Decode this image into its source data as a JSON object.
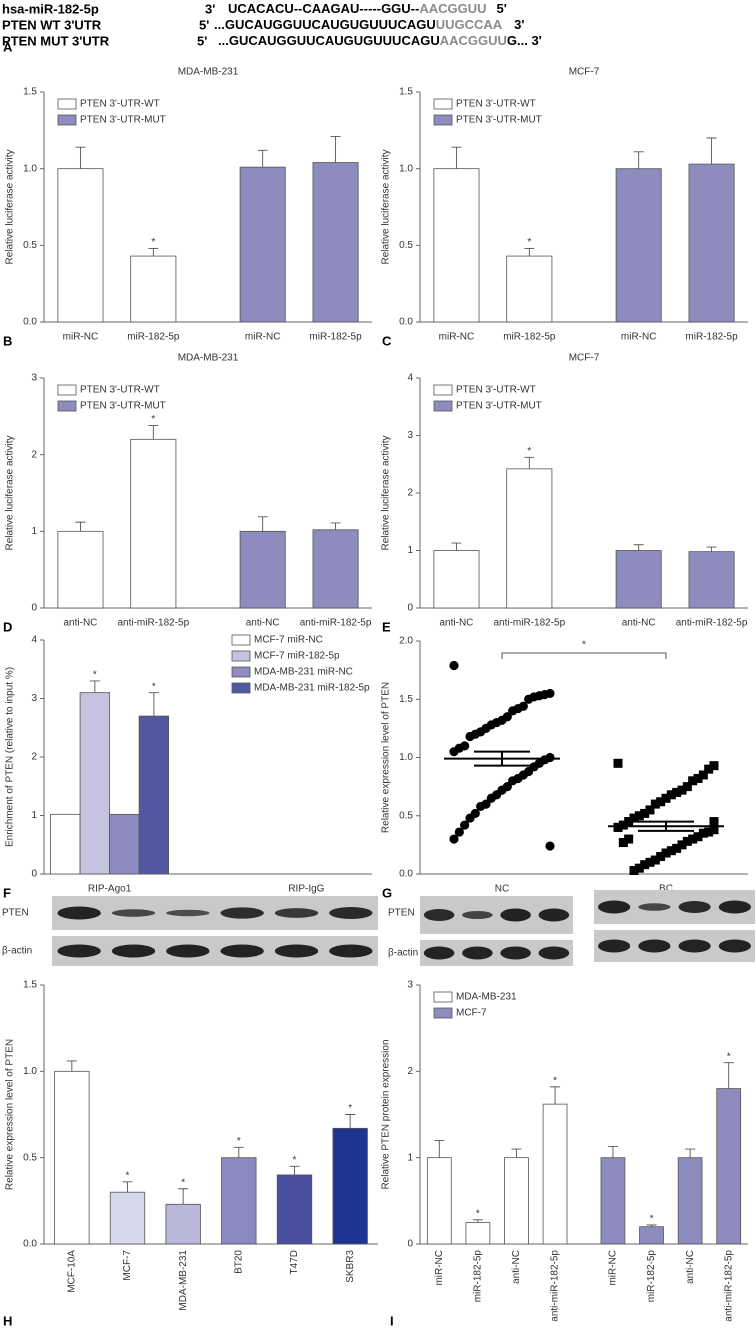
{
  "sequence_panel": {
    "panel": "A",
    "rows": [
      {
        "name": "hsa-miR-182-5p",
        "prefix": "3'",
        "sequence": "UCACACU--CAAGAU-----GGU--",
        "seed": "AACGGUU",
        "suffix": "5'"
      },
      {
        "name": "PTEN WT  3'UTR",
        "prefix": "5'",
        "sequence": "...GUCAUGGUUCAUGUGUUUCAGU",
        "seed": "UUGCCAA",
        "suffix": "3'"
      },
      {
        "name": "PTEN MUT 3'UTR",
        "prefix": "5'",
        "sequence": "...GUCAUGGUUCAUGUGUUUCAGU",
        "seed": "AACGGUU",
        "suffix": "G... 3'"
      }
    ]
  },
  "chart_data": [
    {
      "type": "bar",
      "panel": "B",
      "title": "MDA-MB-231",
      "y_label": "Relative luciferase activity",
      "categories": [
        "miR-NC",
        "miR-182-5p",
        "miR-NC",
        "miR-182-5p"
      ],
      "series": [
        {
          "name": "PTEN 3'-UTR-WT",
          "color": "#ffffff",
          "values": [
            1.0,
            0.43,
            null,
            null
          ],
          "errors": [
            0.14,
            0.05,
            null,
            null
          ],
          "annotations": [
            null,
            "*",
            null,
            null
          ]
        },
        {
          "name": "PTEN 3'-UTR-MUT",
          "color": "#8e8bbf",
          "values": [
            null,
            null,
            1.01,
            1.04
          ],
          "errors": [
            null,
            null,
            0.11,
            0.17
          ],
          "annotations": [
            null,
            null,
            null,
            null
          ]
        }
      ],
      "ylim": [
        0,
        1.5
      ],
      "yticks": [
        {
          "value": 0,
          "label": "0.0"
        },
        {
          "value": 0.5,
          "label": "0.5"
        },
        {
          "value": 1,
          "label": "1.0"
        },
        {
          "value": 1.5,
          "label": "1.5"
        }
      ],
      "legend": "upper left"
    },
    {
      "type": "bar",
      "panel": "C",
      "title": "MCF-7",
      "y_label": "Relative luciferase activity",
      "categories": [
        "miR-NC",
        "miR-182-5p",
        "miR-NC",
        "miR-182-5p"
      ],
      "series": [
        {
          "name": "PTEN 3'-UTR-WT",
          "color": "#ffffff",
          "values": [
            1.0,
            0.43,
            null,
            null
          ],
          "errors": [
            0.14,
            0.05,
            null,
            null
          ],
          "annotations": [
            null,
            "*",
            null,
            null
          ]
        },
        {
          "name": "PTEN 3'-UTR-MUT",
          "color": "#8e8bbf",
          "values": [
            null,
            null,
            1.0,
            1.03
          ],
          "errors": [
            null,
            null,
            0.11,
            0.17
          ],
          "annotations": [
            null,
            null,
            null,
            null
          ]
        }
      ],
      "ylim": [
        0,
        1.5
      ],
      "yticks": [
        {
          "value": 0,
          "label": "0.0"
        },
        {
          "value": 0.5,
          "label": "0.5"
        },
        {
          "value": 1,
          "label": "1.0"
        },
        {
          "value": 1.5,
          "label": "1.5"
        }
      ],
      "legend": "upper left"
    },
    {
      "type": "bar",
      "panel": "D",
      "title": "MDA-MB-231",
      "y_label": "Relative luciferase activity",
      "categories": [
        "anti-NC",
        "anti-miR-182-5p",
        "anti-NC",
        "anti-miR-182-5p"
      ],
      "series": [
        {
          "name": "PTEN 3'-UTR-WT",
          "color": "#ffffff",
          "values": [
            1.0,
            2.2,
            null,
            null
          ],
          "errors": [
            0.12,
            0.18,
            null,
            null
          ],
          "annotations": [
            null,
            "*",
            null,
            null
          ]
        },
        {
          "name": "PTEN 3'-UTR-MUT",
          "color": "#8e8bbf",
          "values": [
            null,
            null,
            1.0,
            1.02
          ],
          "errors": [
            null,
            null,
            0.19,
            0.09
          ],
          "annotations": [
            null,
            null,
            null,
            null
          ]
        }
      ],
      "ylim": [
        0,
        3
      ],
      "yticks": [
        0,
        1,
        2,
        3
      ],
      "legend": "upper left"
    },
    {
      "type": "bar",
      "panel": "E",
      "title": "MCF-7",
      "y_label": "Relative luciferase activity",
      "categories": [
        "anti-NC",
        "anti-miR-182-5p",
        "anti-NC",
        "anti-miR-182-5p"
      ],
      "series": [
        {
          "name": "PTEN 3'-UTR-WT",
          "color": "#ffffff",
          "values": [
            1.0,
            2.42,
            null,
            null
          ],
          "errors": [
            0.13,
            0.2,
            null,
            null
          ],
          "annotations": [
            null,
            "*",
            null,
            null
          ]
        },
        {
          "name": "PTEN 3'-UTR-MUT",
          "color": "#8e8bbf",
          "values": [
            null,
            null,
            1.0,
            0.98
          ],
          "errors": [
            null,
            null,
            0.1,
            0.08
          ],
          "annotations": [
            null,
            null,
            null,
            null
          ]
        }
      ],
      "ylim": [
        0,
        4
      ],
      "yticks": [
        0,
        1,
        2,
        3,
        4
      ],
      "legend": "upper left"
    },
    {
      "type": "bar",
      "panel": "F",
      "y_label": "Enrichment of PTEN (relative to input %)",
      "categories": [
        "RIP-Ago1",
        "RIP-IgG"
      ],
      "series": [
        {
          "name": "MCF-7 miR-NC",
          "color": "#ffffff",
          "values": [
            1.02,
            null
          ],
          "errors": [
            null,
            null
          ],
          "annotations": [
            null,
            null
          ]
        },
        {
          "name": "MCF-7 miR-182-5p",
          "color": "#c5c3df",
          "values": [
            3.1,
            null
          ],
          "errors": [
            0.2,
            null
          ],
          "annotations": [
            "*",
            null
          ]
        },
        {
          "name": "MDA-MB-231 miR-NC",
          "color": "#8e8bbf",
          "values": [
            1.02,
            null
          ],
          "errors": [
            null,
            null
          ],
          "annotations": [
            null,
            null
          ]
        },
        {
          "name": "MDA-MB-231 miR-182-5p",
          "color": "#5157a0",
          "values": [
            2.7,
            null
          ],
          "errors": [
            0.4,
            null
          ],
          "annotations": [
            "*",
            null
          ]
        }
      ],
      "ylim": [
        0,
        4
      ],
      "yticks": [
        0,
        1,
        2,
        3,
        4
      ],
      "legend": "upper right"
    },
    {
      "type": "strip",
      "panel": "G",
      "y_label": "Relative expression level of PTEN",
      "categories": [
        "NC",
        "BC"
      ],
      "significance": "*",
      "series": [
        {
          "marker": "circle",
          "color": "#000000",
          "mean": 0.99,
          "sem": 0.06,
          "values": [
            1.79,
            1.55,
            1.54,
            1.53,
            1.52,
            1.5,
            1.44,
            1.42,
            1.4,
            1.35,
            1.32,
            1.3,
            1.28,
            1.25,
            1.22,
            1.2,
            1.18,
            1.1,
            1.08,
            1.05,
            1.0,
            0.98,
            0.95,
            0.92,
            0.88,
            0.85,
            0.82,
            0.8,
            0.75,
            0.72,
            0.68,
            0.65,
            0.6,
            0.58,
            0.52,
            0.48,
            0.42,
            0.36,
            0.3,
            0.24
          ]
        },
        {
          "marker": "square",
          "color": "#000000",
          "mean": 0.41,
          "sem": 0.04,
          "values": [
            0.95,
            0.93,
            0.9,
            0.85,
            0.82,
            0.8,
            0.75,
            0.72,
            0.7,
            0.68,
            0.65,
            0.62,
            0.6,
            0.55,
            0.52,
            0.5,
            0.48,
            0.45,
            0.42,
            0.4,
            0.38,
            0.36,
            0.35,
            0.32,
            0.3,
            0.28,
            0.25,
            0.22,
            0.2,
            0.18,
            0.15,
            0.12,
            0.1,
            0.08,
            0.05,
            0.03,
            0.3,
            0.27,
            0.4,
            0.45
          ]
        }
      ],
      "ylim": [
        0,
        2
      ],
      "yticks": [
        {
          "value": 0,
          "label": "0.0"
        },
        {
          "value": 0.5,
          "label": "0.5"
        },
        {
          "value": 1,
          "label": "1.0"
        },
        {
          "value": 1.5,
          "label": "1.5"
        },
        {
          "value": 2,
          "label": "2.0"
        }
      ]
    },
    {
      "type": "bar",
      "panel": "H",
      "y_label": "Relative expression level of PTEN",
      "blot_labels": [
        "PTEN",
        "β-actin"
      ],
      "rotate_labels": true,
      "categories": [
        "MCF-10A",
        "MCF-7",
        "MDA-MB-231",
        "BT20",
        "T47D",
        "SKBR3"
      ],
      "series": [
        {
          "colors": [
            "#ffffff",
            "#d8d8ec",
            "#b9b8dc",
            "#8a88c0",
            "#4a4fa0",
            "#1d3590"
          ],
          "values": [
            1.0,
            0.3,
            0.23,
            0.5,
            0.4,
            0.67
          ],
          "errors": [
            0.06,
            0.06,
            0.09,
            0.06,
            0.05,
            0.08
          ],
          "annotations": [
            null,
            "*",
            "*",
            "*",
            "*",
            "*"
          ]
        }
      ],
      "ylim": [
        0,
        1.5
      ],
      "yticks": [
        {
          "value": 0,
          "label": "0.0"
        },
        {
          "value": 0.5,
          "label": "0.5"
        },
        {
          "value": 1,
          "label": "1.0"
        },
        {
          "value": 1.5,
          "label": "1.5"
        }
      ]
    },
    {
      "type": "bar",
      "panel": "I",
      "y_label": "Relative PTEN protein expression",
      "blot_labels": [
        "PTEN",
        "β-actin"
      ],
      "rotate_labels": true,
      "categories": [
        "miR-NC",
        "miR-182-5p",
        "anti-NC",
        "anti-miR-182-5p",
        "miR-NC",
        "miR-182-5p",
        "anti-NC",
        "anti-miR-182-5p"
      ],
      "series": [
        {
          "name": "MDA-MB-231",
          "color": "#ffffff",
          "values": [
            1.0,
            0.25,
            1.0,
            1.62,
            null,
            null,
            null,
            null
          ],
          "errors": [
            0.2,
            0.03,
            0.1,
            0.2,
            null,
            null,
            null,
            null
          ],
          "annotations": [
            null,
            "*",
            null,
            "*",
            null,
            null,
            null,
            null
          ]
        },
        {
          "name": "MCF-7",
          "color": "#8e8bbf",
          "values": [
            null,
            null,
            null,
            null,
            1.0,
            0.2,
            1.0,
            1.8
          ],
          "errors": [
            null,
            null,
            null,
            null,
            0.13,
            0.02,
            0.1,
            0.3
          ],
          "annotations": [
            null,
            null,
            null,
            null,
            null,
            "*",
            null,
            "*"
          ]
        }
      ],
      "ylim": [
        0,
        3
      ],
      "yticks": [
        0,
        1,
        2,
        3
      ],
      "legend": "upper left"
    }
  ]
}
